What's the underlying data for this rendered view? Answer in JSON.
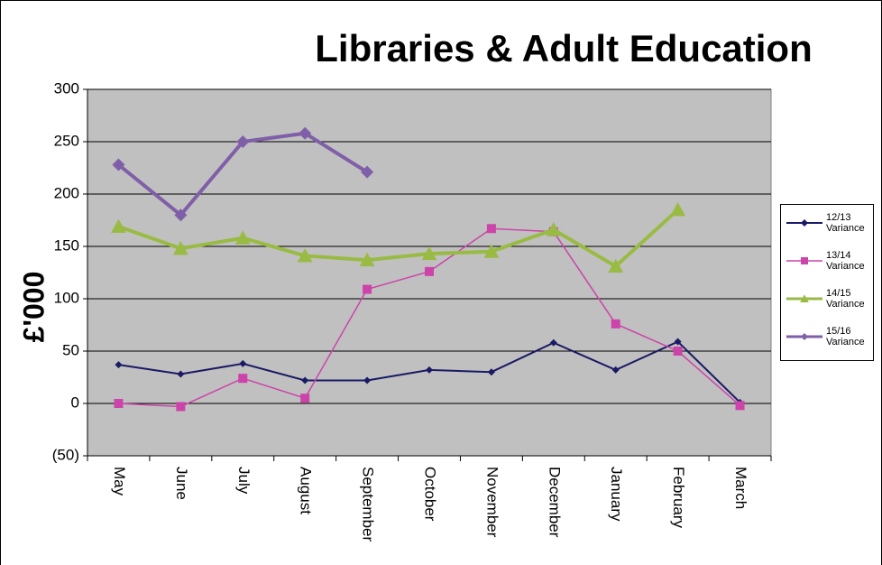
{
  "chart_data": {
    "type": "line",
    "title": "Libraries & Adult Education",
    "y_label": "£'000",
    "categories": [
      "May",
      "June",
      "July",
      "August",
      "September",
      "October",
      "November",
      "December",
      "January",
      "February",
      "March"
    ],
    "series": [
      {
        "name": "12/13 Variance",
        "color": "#1a1a66",
        "marker": "diamond",
        "values": [
          37,
          28,
          38,
          22,
          22,
          32,
          30,
          58,
          32,
          59,
          1
        ]
      },
      {
        "name": "13/14 Variance",
        "color": "#cc44aa",
        "marker": "square",
        "values": [
          0,
          -3,
          24,
          5,
          109,
          126,
          167,
          164,
          76,
          50,
          -2
        ]
      },
      {
        "name": "14/15 Variance",
        "color": "#99bb44",
        "marker": "triangle",
        "values": [
          169,
          148,
          158,
          141,
          137,
          143,
          145,
          166,
          131,
          185,
          null
        ]
      },
      {
        "name": "15/16 Variance",
        "color": "#7f5fa8",
        "marker": "diamond",
        "values": [
          228,
          180,
          250,
          258,
          221,
          null,
          null,
          null,
          null,
          null,
          null
        ]
      }
    ],
    "ylim": [
      -50,
      300
    ],
    "yticks": [
      {
        "value": -50,
        "label": "(50)"
      },
      0,
      50,
      100,
      150,
      200,
      250,
      300
    ],
    "grid": true
  }
}
